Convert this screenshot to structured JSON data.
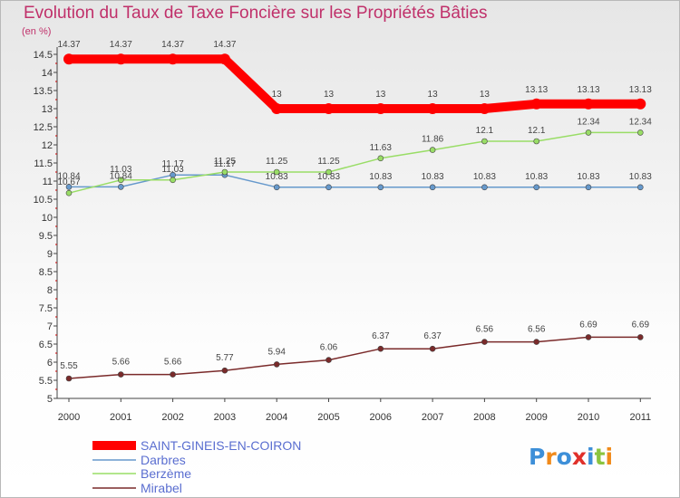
{
  "chart_data": {
    "type": "line",
    "title": "Evolution du Taux de Taxe Foncière sur les Propriétés Bâties",
    "unit_label": "(en %)",
    "xlabel": "",
    "ylabel": "",
    "categories": [
      "2000",
      "2001",
      "2002",
      "2003",
      "2004",
      "2005",
      "2006",
      "2007",
      "2008",
      "2009",
      "2010",
      "2011"
    ],
    "ylim": [
      5,
      14.5
    ],
    "yticks": [
      "5",
      "5.5",
      "6",
      "6.5",
      "7",
      "7.5",
      "8",
      "8.5",
      "9",
      "9.5",
      "10",
      "10.5",
      "11",
      "11.5",
      "12",
      "12.5",
      "13",
      "13.5",
      "14",
      "14.5"
    ],
    "grid": false,
    "legend_position": "bottom-left",
    "series": [
      {
        "name": "SAINT-GINEIS-EN-COIRON",
        "color": "#ff0000",
        "values": [
          14.37,
          14.37,
          14.37,
          14.37,
          13,
          13,
          13,
          13,
          13,
          13.13,
          13.13,
          13.13
        ],
        "labels": [
          "14.37",
          "14.37",
          "14.37",
          "14.37",
          "13",
          "13",
          "13",
          "13",
          "13",
          "13.13",
          "13.13",
          "13.13"
        ]
      },
      {
        "name": "Darbres",
        "color": "#6699cc",
        "values": [
          10.84,
          10.84,
          11.17,
          11.17,
          10.83,
          10.83,
          10.83,
          10.83,
          10.83,
          10.83,
          10.83,
          10.83
        ],
        "labels": [
          "10.84",
          "10.84",
          "11.17",
          "11.17",
          "10.83",
          "10.83",
          "10.83",
          "10.83",
          "10.83",
          "10.83",
          "10.83",
          "10.83"
        ]
      },
      {
        "name": "Berzème",
        "color": "#99dd66",
        "values": [
          10.67,
          11.03,
          11.03,
          11.25,
          11.25,
          11.25,
          11.63,
          11.86,
          12.1,
          12.1,
          12.34,
          12.34
        ],
        "labels": [
          "10.67",
          "11.03",
          "11.03",
          "11.25",
          "11.25",
          "11.25",
          "11.63",
          "11.86",
          "12.1",
          "12.1",
          "12.34",
          "12.34"
        ]
      },
      {
        "name": "Mirabel",
        "color": "#7a2a2a",
        "values": [
          5.55,
          5.66,
          5.66,
          5.77,
          5.94,
          6.06,
          6.37,
          6.37,
          6.56,
          6.56,
          6.69,
          6.69
        ],
        "labels": [
          "5.55",
          "5.66",
          "5.66",
          "5.77",
          "5.94",
          "6.06",
          "6.37",
          "6.37",
          "6.56",
          "6.56",
          "6.69",
          "6.69"
        ]
      }
    ]
  },
  "logo": {
    "text": "Proxiti",
    "colors": [
      "#3d8fd8",
      "#f08a1a",
      "#3d8fd8",
      "#e0302a",
      "#3d8fd8",
      "#8bc43f",
      "#f08a1a"
    ]
  }
}
